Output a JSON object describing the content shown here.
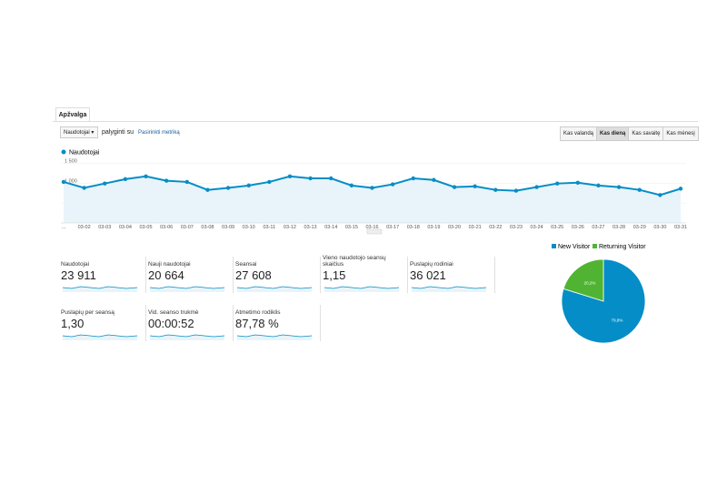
{
  "tab": "Apžvalga",
  "controls": {
    "metric": "Naudotojai",
    "compare": "palyginti su",
    "select_metric": "Pasirinkti metriką",
    "buttons": [
      "Kas valandą",
      "Kas dieną",
      "Kas savaitę",
      "Kas mėnesį"
    ]
  },
  "chart_data": [
    {
      "type": "line",
      "categories": [
        "...",
        "03-02",
        "03-03",
        "03-04",
        "03-05",
        "03-06",
        "03-07",
        "03-08",
        "03-09",
        "03-10",
        "03-11",
        "03-12",
        "03-13",
        "03-14",
        "03-15",
        "03-16",
        "03-17",
        "03-18",
        "03-19",
        "03-20",
        "03-21",
        "03-22",
        "03-23",
        "03-24",
        "03-25",
        "03-26",
        "03-27",
        "03-28",
        "03-29",
        "03-30",
        "03-31"
      ],
      "series": [
        {
          "name": "Naudotojai",
          "color": "#058dc7",
          "values": [
            1030,
            880,
            990,
            1100,
            1170,
            1060,
            1030,
            830,
            880,
            940,
            1030,
            1170,
            1120,
            1120,
            940,
            880,
            970,
            1120,
            1080,
            900,
            920,
            830,
            810,
            900,
            990,
            1010,
            940,
            900,
            830,
            700,
            860
          ]
        }
      ],
      "ylim": [
        0,
        1600
      ],
      "yticks": [
        500,
        {
          "value": 1000,
          "label": "1 000"
        },
        {
          "value": 1500,
          "label": "1 500"
        }
      ],
      "grid": true
    },
    {
      "type": "pie",
      "categories": [
        "New Visitor",
        "Returning Visitor"
      ],
      "values": [
        79.8,
        20.2
      ],
      "value_labels": [
        "79,8%",
        "20,2%"
      ],
      "colors": [
        "#058dc7",
        "#50b432"
      ]
    }
  ],
  "metrics": [
    {
      "label": "Naudotojai",
      "value": "23 911"
    },
    {
      "label": "Nauji naudotojai",
      "value": "20 664"
    },
    {
      "label": "Seansai",
      "value": "27 608"
    },
    {
      "label": "Vieno naudotojo seansų skaičius",
      "value": "1,15"
    },
    {
      "label": "Puslapių rodiniai",
      "value": "36 021"
    },
    {
      "label": "Puslapių per seansą",
      "value": "1,30"
    },
    {
      "label": "Vid. seanso trukmė",
      "value": "00:00:52"
    },
    {
      "label": "Atmetimo rodiklis",
      "value": "87,78 %"
    }
  ]
}
